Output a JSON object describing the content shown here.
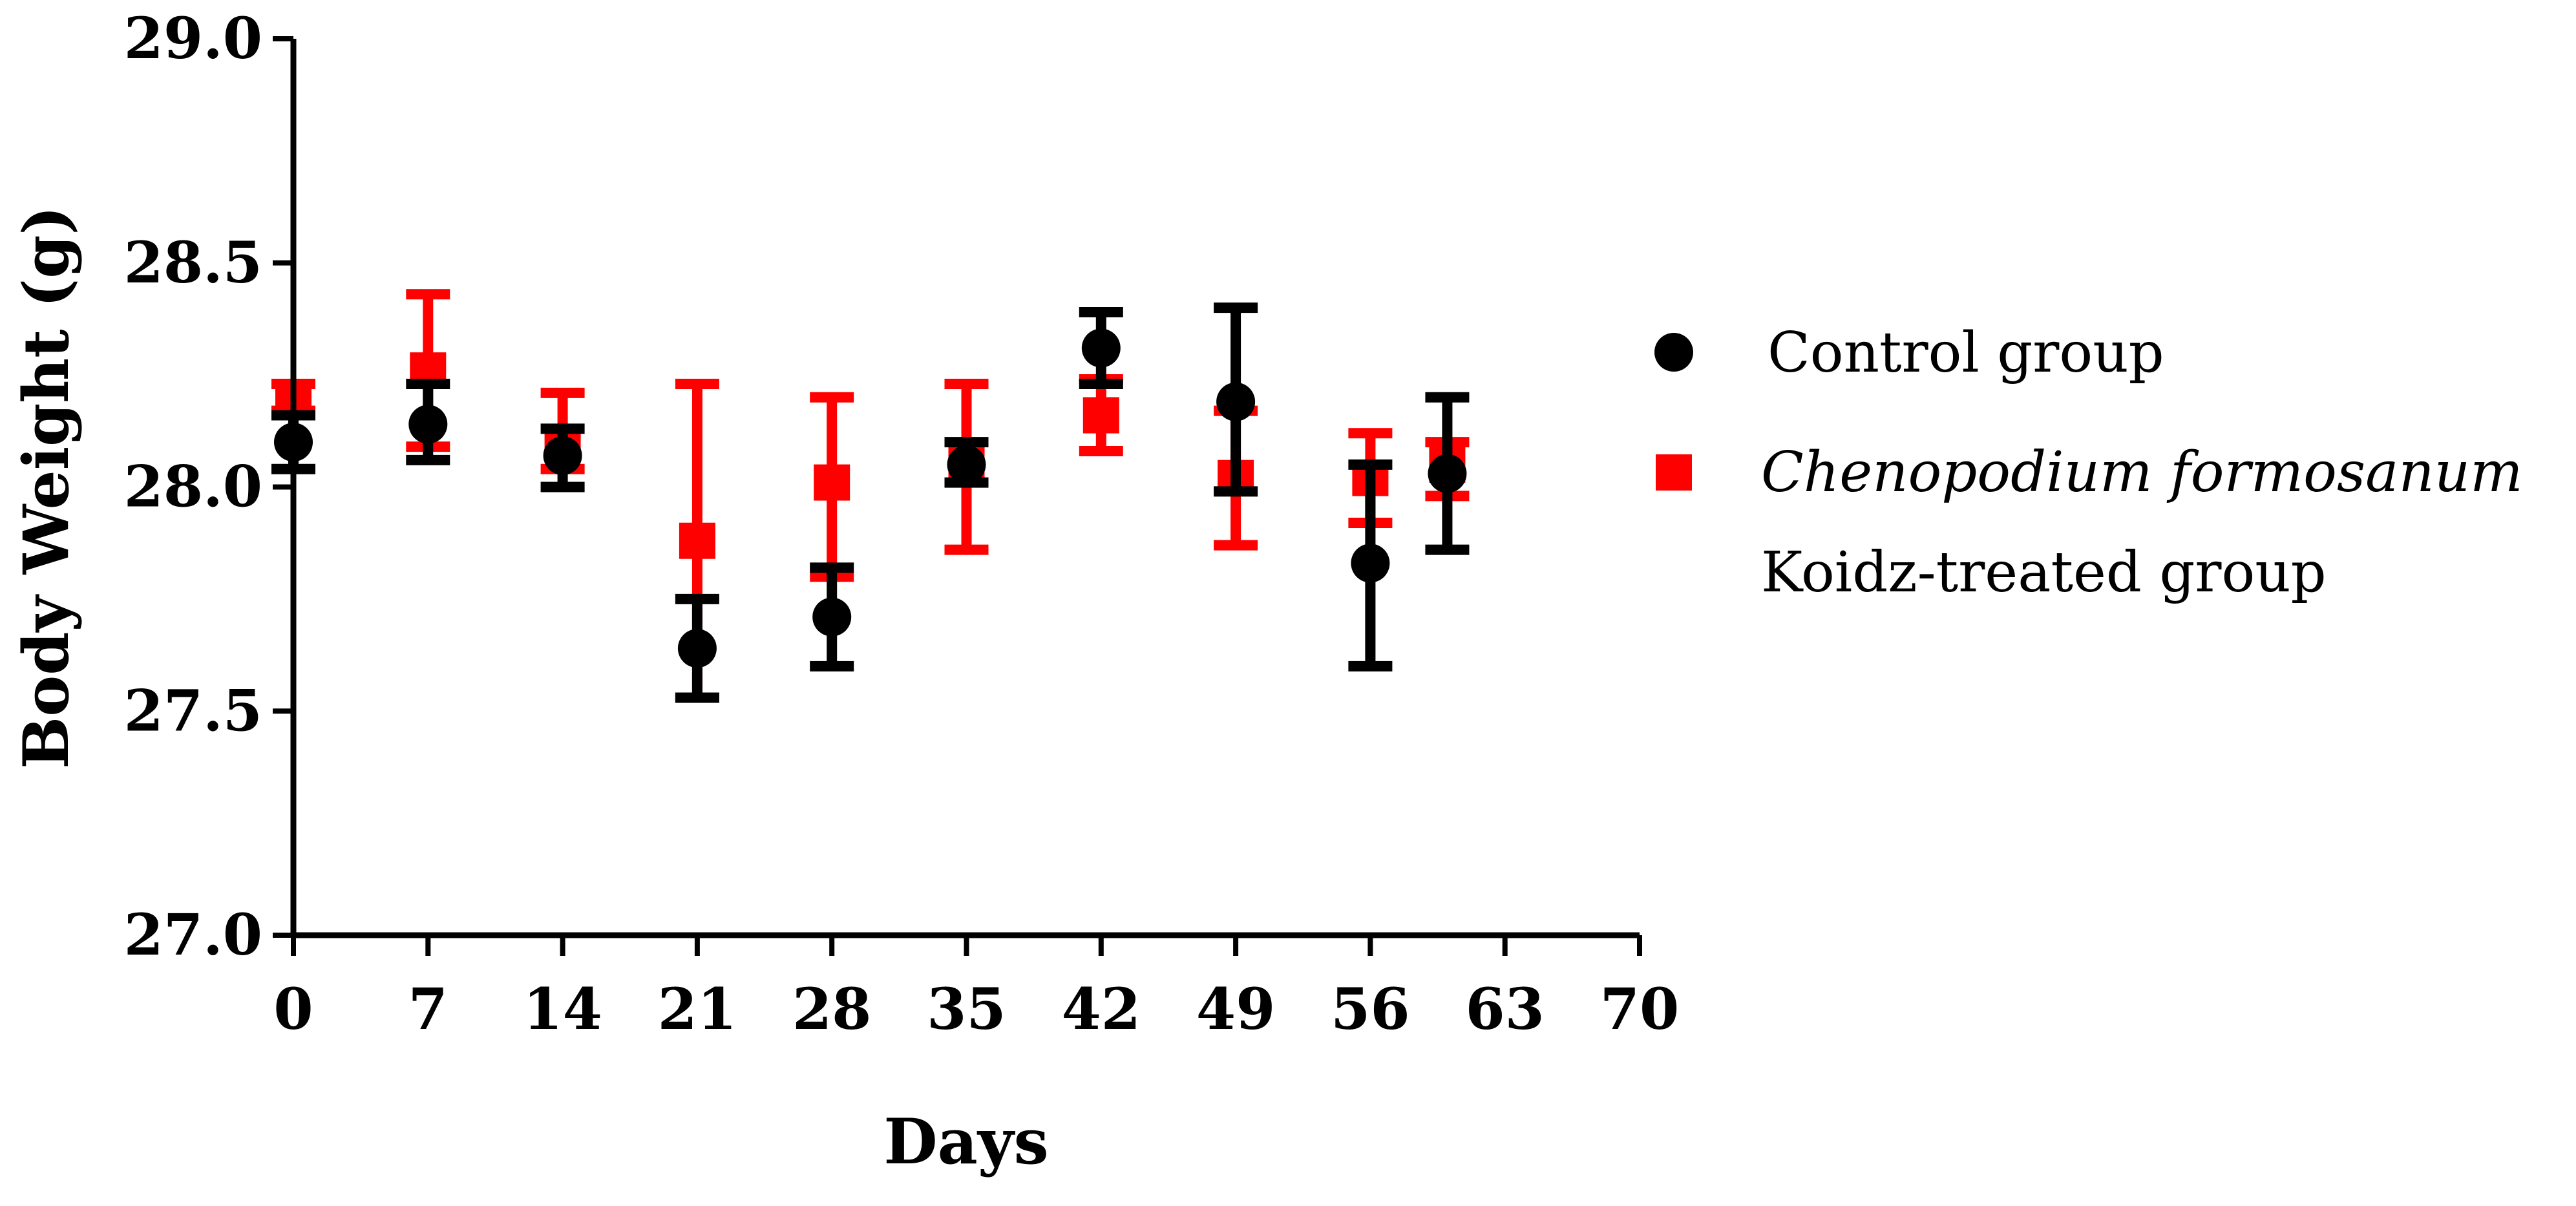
{
  "chart_data": {
    "type": "scatter",
    "xlabel": "Days",
    "ylabel": "Body Weight (g)",
    "xlim": [
      0,
      70
    ],
    "ylim": [
      27.0,
      29.0
    ],
    "x_ticks": [
      "0",
      "7",
      "14",
      "21",
      "28",
      "35",
      "42",
      "49",
      "56",
      "63",
      "70"
    ],
    "y_ticks": [
      "27.0",
      "27.5",
      "28.0",
      "28.5",
      "29.0"
    ],
    "grid": false,
    "legend_position": "right",
    "series": [
      {
        "name": "Control group",
        "color": "#000000",
        "marker": "circle",
        "x": [
          0,
          7,
          14,
          21,
          28,
          35,
          42,
          49,
          56,
          60
        ],
        "y": [
          28.1,
          28.14,
          28.07,
          27.64,
          27.71,
          28.05,
          28.31,
          28.19,
          27.83,
          28.03
        ],
        "err_low": [
          28.04,
          28.06,
          28.0,
          27.53,
          27.6,
          28.01,
          28.23,
          27.99,
          27.6,
          27.86
        ],
        "err_high": [
          28.16,
          28.23,
          28.13,
          27.75,
          27.82,
          28.1,
          28.39,
          28.4,
          28.05,
          28.2
        ]
      },
      {
        "name_line1": "Chenopodium formosanum",
        "name_line2": "Koidz-treated group",
        "color": "#ff0000",
        "marker": "square",
        "x": [
          0,
          7,
          14,
          21,
          28,
          35,
          42,
          49,
          56,
          60
        ],
        "y": [
          28.2,
          28.26,
          28.1,
          27.88,
          28.01,
          28.05,
          28.16,
          28.02,
          28.02,
          28.05
        ],
        "err_low": [
          28.17,
          28.09,
          28.04,
          27.53,
          27.8,
          27.86,
          28.08,
          27.87,
          27.92,
          27.98
        ],
        "err_high": [
          28.23,
          28.43,
          28.21,
          28.23,
          28.2,
          28.23,
          28.24,
          28.17,
          28.12,
          28.1
        ]
      }
    ]
  }
}
